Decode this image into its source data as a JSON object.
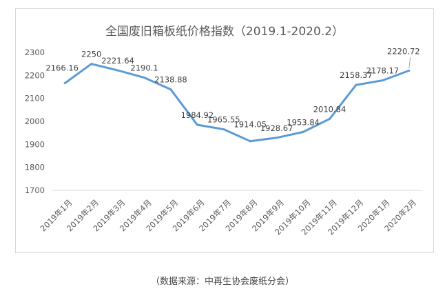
{
  "chart_data": {
    "type": "line",
    "title": "全国废旧箱板纸价格指数（2019.1-2020.2）",
    "categories": [
      "2019年1月",
      "2019年2月",
      "2019年3月",
      "2019年4月",
      "2019年5月",
      "2019年6月",
      "2019年7月",
      "2019年8月",
      "2019年9月",
      "2019年10月",
      "2019年11月",
      "2019年12月",
      "2020年1月",
      "2020年2月"
    ],
    "values": [
      2166.16,
      2250,
      2221.64,
      2190.1,
      2138.88,
      1984.92,
      1965.55,
      1914.05,
      1928.67,
      1953.84,
      2010.84,
      2158.37,
      2178.17,
      2220.72
    ],
    "data_labels": [
      "2166.16",
      "2250",
      "2221.64",
      "2190.1",
      "2138.88",
      "1984.92",
      "1965.55",
      "1914.05",
      "1928.67",
      "1953.84",
      "2010.84",
      "2158.37",
      "2178.17",
      "2220.72"
    ],
    "ylim": [
      1700,
      2300
    ],
    "yticks": [
      1700,
      1800,
      1900,
      2000,
      2100,
      2200,
      2300
    ],
    "ytick_labels": [
      "1700",
      "1800",
      "1900",
      "2000",
      "2100",
      "2200",
      "2300"
    ],
    "grid": false,
    "legend": "none",
    "line_color": "#5B9BD5"
  },
  "source_note": "（数据来源：中再生协会废纸分会）"
}
